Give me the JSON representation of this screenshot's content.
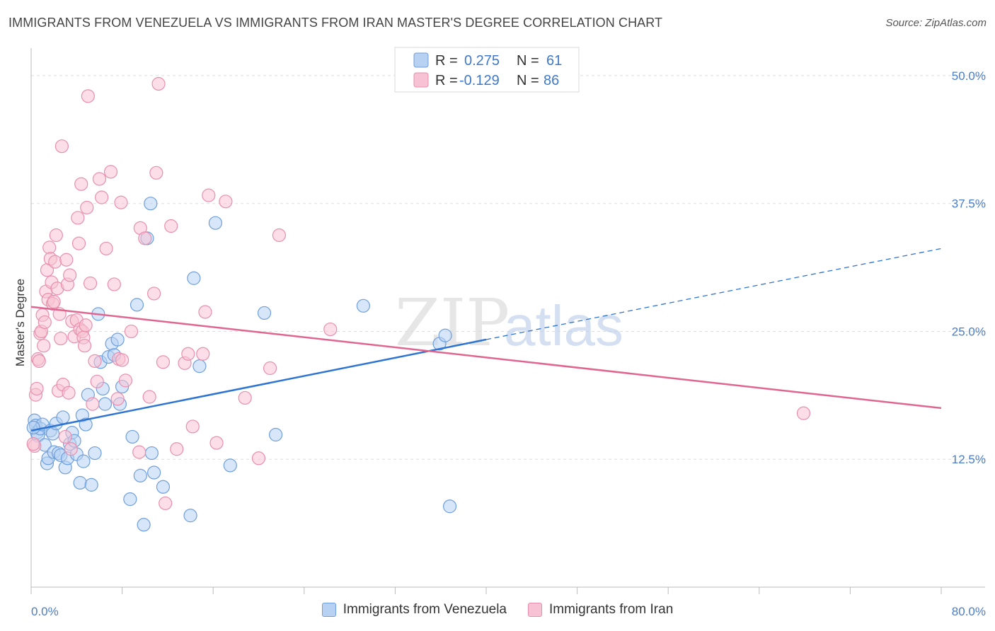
{
  "title": "IMMIGRANTS FROM VENEZUELA VS IMMIGRANTS FROM IRAN MASTER'S DEGREE CORRELATION CHART",
  "source": "Source: ZipAtlas.com",
  "watermark": {
    "zip": "ZIP",
    "atlas": "atlas"
  },
  "colors": {
    "blue_fill": "#b7d1f3",
    "blue_stroke": "#6f9fdc",
    "blue_line": "#2e74d1",
    "pink_fill": "#f7c2d3",
    "pink_stroke": "#e88fae",
    "pink_line": "#e06691",
    "tick_label": "#4a7cc7"
  },
  "legend_box": {
    "rows": [
      {
        "r_label": "R =",
        "r_value": "0.275",
        "n_label": "N =",
        "n_value": "61"
      },
      {
        "r_label": "R =",
        "r_value": "-0.129",
        "n_label": "N =",
        "n_value": "86"
      }
    ]
  },
  "chart_data": {
    "type": "scatter",
    "title": "IMMIGRANTS FROM VENEZUELA VS IMMIGRANTS FROM IRAN MASTER'S DEGREE CORRELATION CHART",
    "xlabel": "",
    "ylabel": "Master's Degree",
    "xlim": [
      0,
      80
    ],
    "ylim": [
      0,
      52
    ],
    "x_tick_labels": [
      "0.0%",
      "80.0%"
    ],
    "y_ticks": [
      12.5,
      25.0,
      37.5,
      50.0
    ],
    "y_tick_labels": [
      "12.5%",
      "25.0%",
      "37.5%",
      "50.0%"
    ],
    "grid": true,
    "legend": "bottom-center",
    "series": [
      {
        "name": "Immigrants from Venezuela",
        "R": 0.275,
        "N": 61,
        "trend": {
          "x0": 0,
          "y0": 15.3,
          "x1": 40,
          "y1": 24.2,
          "dash_x1": 80,
          "dash_y1": 33.1
        },
        "points": [
          [
            0.3,
            16.3
          ],
          [
            0.4,
            15.8
          ],
          [
            0.5,
            15.1
          ],
          [
            0.6,
            14.8
          ],
          [
            0.8,
            15.5
          ],
          [
            1.0,
            15.9
          ],
          [
            1.2,
            13.9
          ],
          [
            1.4,
            12.1
          ],
          [
            1.5,
            12.6
          ],
          [
            1.7,
            15.3
          ],
          [
            1.9,
            15.0
          ],
          [
            2.0,
            13.2
          ],
          [
            2.2,
            16.0
          ],
          [
            2.4,
            13.1
          ],
          [
            2.6,
            12.9
          ],
          [
            2.8,
            16.6
          ],
          [
            3.0,
            11.7
          ],
          [
            3.2,
            12.6
          ],
          [
            3.4,
            14.0
          ],
          [
            3.6,
            15.1
          ],
          [
            3.8,
            14.3
          ],
          [
            4.0,
            13.0
          ],
          [
            4.3,
            10.2
          ],
          [
            4.5,
            16.8
          ],
          [
            4.6,
            12.3
          ],
          [
            4.8,
            15.9
          ],
          [
            5.0,
            18.8
          ],
          [
            5.3,
            10.0
          ],
          [
            5.6,
            13.1
          ],
          [
            5.9,
            26.7
          ],
          [
            6.1,
            22.0
          ],
          [
            6.3,
            19.4
          ],
          [
            6.5,
            17.9
          ],
          [
            6.8,
            22.5
          ],
          [
            7.1,
            23.8
          ],
          [
            7.3,
            22.7
          ],
          [
            7.6,
            24.2
          ],
          [
            7.8,
            17.9
          ],
          [
            8.0,
            19.6
          ],
          [
            8.7,
            8.6
          ],
          [
            8.9,
            14.7
          ],
          [
            9.3,
            27.6
          ],
          [
            9.6,
            10.9
          ],
          [
            9.9,
            6.1
          ],
          [
            10.2,
            34.1
          ],
          [
            10.5,
            37.5
          ],
          [
            10.6,
            13.1
          ],
          [
            10.8,
            11.2
          ],
          [
            11.6,
            9.8
          ],
          [
            14.3,
            30.2
          ],
          [
            14.8,
            21.6
          ],
          [
            14.0,
            7.0
          ],
          [
            16.2,
            35.6
          ],
          [
            17.5,
            11.9
          ],
          [
            20.5,
            26.8
          ],
          [
            21.5,
            14.9
          ],
          [
            29.2,
            27.5
          ],
          [
            35.9,
            23.8
          ],
          [
            36.4,
            24.6
          ],
          [
            36.8,
            7.9
          ],
          [
            0.2,
            15.6
          ]
        ]
      },
      {
        "name": "Immigrants from Iran",
        "R": -0.129,
        "N": 86,
        "trend": {
          "x0": 0,
          "y0": 27.4,
          "x1": 80,
          "y1": 17.5
        },
        "points": [
          [
            0.3,
            13.8
          ],
          [
            0.4,
            18.8
          ],
          [
            0.5,
            19.4
          ],
          [
            0.6,
            22.3
          ],
          [
            0.7,
            22.1
          ],
          [
            0.8,
            24.8
          ],
          [
            0.9,
            25.0
          ],
          [
            1.0,
            26.6
          ],
          [
            1.1,
            23.6
          ],
          [
            1.2,
            25.9
          ],
          [
            1.3,
            28.9
          ],
          [
            1.4,
            31.0
          ],
          [
            1.5,
            28.1
          ],
          [
            1.6,
            33.2
          ],
          [
            1.7,
            32.1
          ],
          [
            1.8,
            29.8
          ],
          [
            1.9,
            27.7
          ],
          [
            2.0,
            27.9
          ],
          [
            2.1,
            31.8
          ],
          [
            2.2,
            34.4
          ],
          [
            2.3,
            29.2
          ],
          [
            2.4,
            19.2
          ],
          [
            2.5,
            26.7
          ],
          [
            2.6,
            24.3
          ],
          [
            2.7,
            43.1
          ],
          [
            2.8,
            19.8
          ],
          [
            3.0,
            14.7
          ],
          [
            3.1,
            32.0
          ],
          [
            3.2,
            29.6
          ],
          [
            3.3,
            19.0
          ],
          [
            3.4,
            30.5
          ],
          [
            3.6,
            26.0
          ],
          [
            3.8,
            24.5
          ],
          [
            4.0,
            26.1
          ],
          [
            4.1,
            36.1
          ],
          [
            4.2,
            33.6
          ],
          [
            4.3,
            25.2
          ],
          [
            4.4,
            39.4
          ],
          [
            4.5,
            25.0
          ],
          [
            4.6,
            24.4
          ],
          [
            4.7,
            23.6
          ],
          [
            4.8,
            25.6
          ],
          [
            4.9,
            37.1
          ],
          [
            5.0,
            48.0
          ],
          [
            5.2,
            29.7
          ],
          [
            5.4,
            17.9
          ],
          [
            5.6,
            22.1
          ],
          [
            5.8,
            20.1
          ],
          [
            6.0,
            39.9
          ],
          [
            6.2,
            38.1
          ],
          [
            6.6,
            33.1
          ],
          [
            7.0,
            40.6
          ],
          [
            7.3,
            29.6
          ],
          [
            7.6,
            18.4
          ],
          [
            7.7,
            22.3
          ],
          [
            7.9,
            37.6
          ],
          [
            8.0,
            22.2
          ],
          [
            8.3,
            20.2
          ],
          [
            8.8,
            25.0
          ],
          [
            9.5,
            13.2
          ],
          [
            9.6,
            35.1
          ],
          [
            10.0,
            34.1
          ],
          [
            10.4,
            18.6
          ],
          [
            10.8,
            28.7
          ],
          [
            11.0,
            40.5
          ],
          [
            11.2,
            49.2
          ],
          [
            11.6,
            22.0
          ],
          [
            11.8,
            8.2
          ],
          [
            12.3,
            35.3
          ],
          [
            12.8,
            13.5
          ],
          [
            13.5,
            21.9
          ],
          [
            13.8,
            22.8
          ],
          [
            14.2,
            15.7
          ],
          [
            15.1,
            22.8
          ],
          [
            15.3,
            26.9
          ],
          [
            15.6,
            38.3
          ],
          [
            16.3,
            14.1
          ],
          [
            17.1,
            37.7
          ],
          [
            18.8,
            18.5
          ],
          [
            20.0,
            12.6
          ],
          [
            21.0,
            21.4
          ],
          [
            21.8,
            34.4
          ],
          [
            26.3,
            25.2
          ],
          [
            67.9,
            17.0
          ],
          [
            0.2,
            14.0
          ],
          [
            3.5,
            13.5
          ]
        ]
      }
    ]
  }
}
